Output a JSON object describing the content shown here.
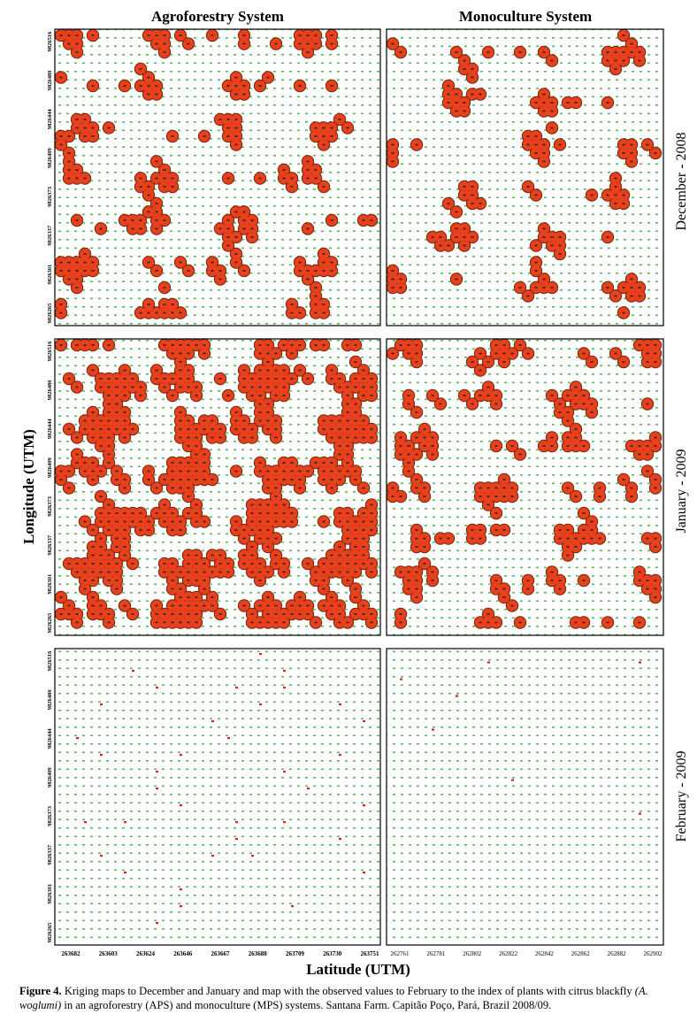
{
  "columns": [
    "Agroforestry System",
    "Monoculture System"
  ],
  "rows": [
    "December - 2008",
    "January - 2009",
    "February - 2009"
  ],
  "y_axis_label": "Longitude (UTM)",
  "x_axis_label": "Latitude (UTM)",
  "left_y_ticks": [
    "9826516",
    "9826480",
    "9826444",
    "9826409",
    "9826373",
    "9826337",
    "9826301",
    "9826265"
  ],
  "left_x_ticks": [
    "263682",
    "263603",
    "263624",
    "263646",
    "263667",
    "263688",
    "263709",
    "263730",
    "263751"
  ],
  "right_x_ticks": [
    "262761",
    "262781",
    "262802",
    "262822",
    "262842",
    "262862",
    "262882",
    "262902"
  ],
  "caption": {
    "label": "Figure 4.",
    "text1": "Kriging maps to December and January and map with the observed values to February to the index of plants with citrus blackfly",
    "species": "(A. woglumi)",
    "text2": "in an agroforestry (APS) and monoculture (MPS) systems. Santana Farm. Capitão Poço, Pará, Brazil 2008/09."
  }
}
